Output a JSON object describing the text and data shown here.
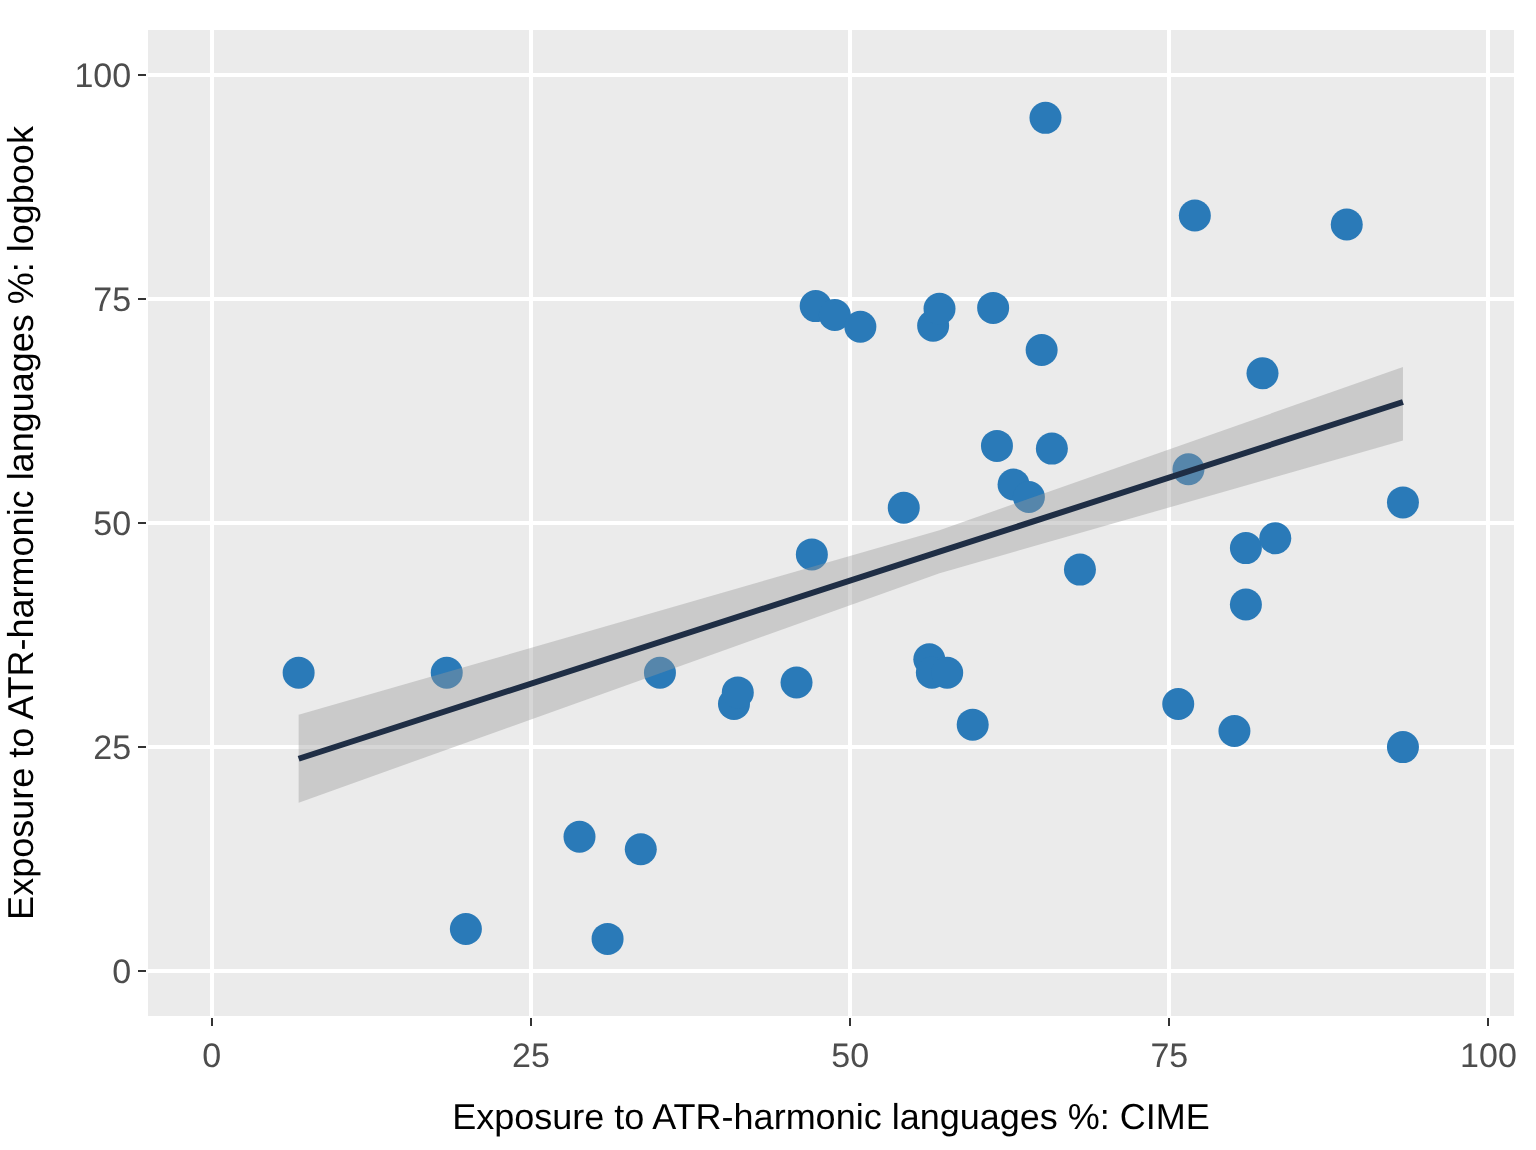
{
  "chart_data": {
    "type": "scatter",
    "xlabel": "Exposure to ATR-harmonic languages %: CIME",
    "ylabel": "Exposure to ATR-harmonic languages %: logbook",
    "xlim": [
      -5,
      102
    ],
    "ylim": [
      -5,
      105
    ],
    "xticks": [
      0,
      25,
      50,
      75,
      100
    ],
    "yticks": [
      0,
      25,
      50,
      75,
      100
    ],
    "grid": true,
    "series": [
      {
        "marker": "circle",
        "color": "#2a7ab8",
        "x": [
          6.8,
          18.4,
          19.9,
          28.8,
          31,
          33.6,
          35.1,
          40.9,
          41.2,
          45.8,
          47,
          47.3,
          48.8,
          50.8,
          54.2,
          56.2,
          56.4,
          56.5,
          57,
          57.6,
          59.6,
          61.2,
          61.5,
          62.8,
          64,
          65,
          65.3,
          65.8,
          68,
          75.7,
          76.5,
          77,
          80.1,
          81,
          81,
          82.3,
          83.3,
          88.9,
          93.3,
          93.3
        ],
        "values": [
          33.3,
          33.3,
          4.7,
          15,
          3.6,
          13.6,
          33.3,
          29.8,
          31.1,
          32.2,
          46.5,
          74.2,
          73.2,
          71.9,
          51.7,
          34.8,
          33.3,
          72,
          73.9,
          33.3,
          27.5,
          74,
          58.6,
          54.3,
          52.9,
          69.3,
          95.2,
          58.3,
          44.8,
          29.8,
          56,
          84.3,
          26.8,
          40.9,
          47.2,
          66.7,
          48.3,
          83.3,
          52.3,
          25
        ]
      },
      {
        "type": "line",
        "color": "#1f2e45",
        "x": [
          6.8,
          57,
          93.3
        ],
        "values": [
          23.7,
          46.8,
          63.5
        ],
        "lower": [
          18.8,
          44.4,
          59.2
        ],
        "upper": [
          28.6,
          49.2,
          67.4
        ]
      }
    ]
  }
}
